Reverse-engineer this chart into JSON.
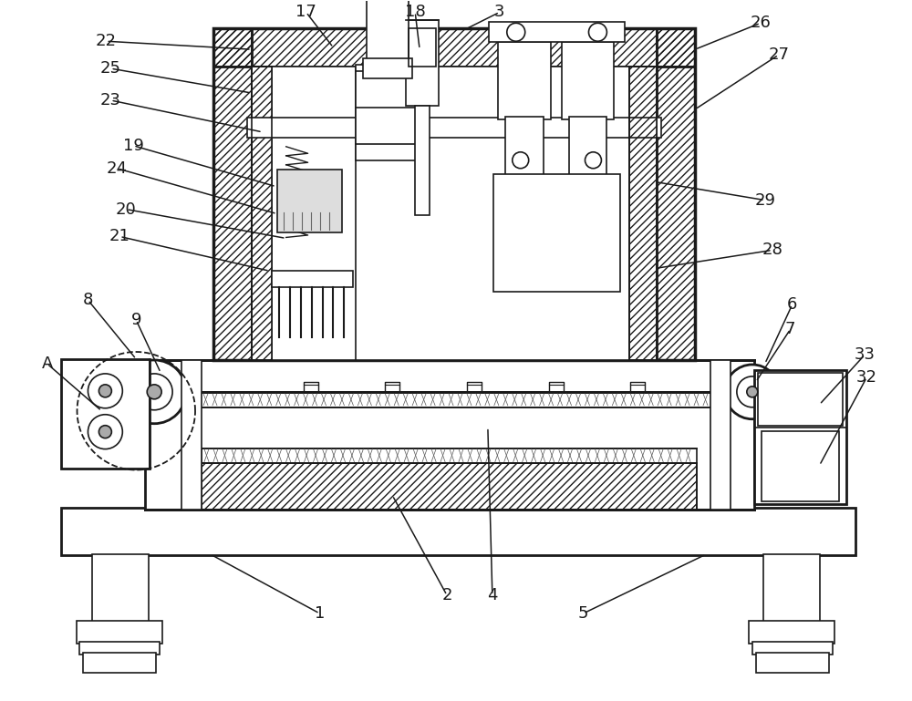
{
  "bg_color": "#ffffff",
  "line_color": "#1a1a1a",
  "fig_width": 10.0,
  "fig_height": 7.69,
  "dpi": 100
}
